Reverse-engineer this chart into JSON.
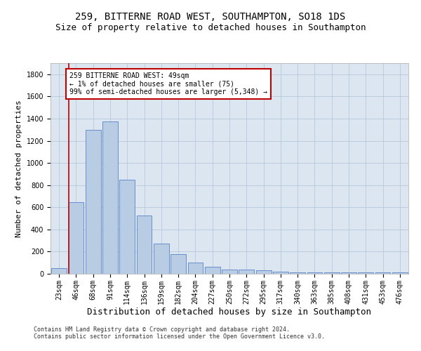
{
  "title1": "259, BITTERNE ROAD WEST, SOUTHAMPTON, SO18 1DS",
  "title2": "Size of property relative to detached houses in Southampton",
  "xlabel": "Distribution of detached houses by size in Southampton",
  "ylabel": "Number of detached properties",
  "categories": [
    "23sqm",
    "46sqm",
    "68sqm",
    "91sqm",
    "114sqm",
    "136sqm",
    "159sqm",
    "182sqm",
    "204sqm",
    "227sqm",
    "250sqm",
    "272sqm",
    "295sqm",
    "317sqm",
    "340sqm",
    "363sqm",
    "385sqm",
    "408sqm",
    "431sqm",
    "453sqm",
    "476sqm"
  ],
  "values": [
    50,
    645,
    1300,
    1375,
    850,
    525,
    275,
    175,
    100,
    65,
    40,
    35,
    30,
    20,
    15,
    12,
    10,
    10,
    10,
    10,
    12
  ],
  "bar_color": "#b8cce4",
  "bar_edge_color": "#4472c4",
  "ylim": [
    0,
    1900
  ],
  "yticks": [
    0,
    200,
    400,
    600,
    800,
    1000,
    1200,
    1400,
    1600,
    1800
  ],
  "vline_color": "#c00000",
  "annotation_text": "259 BITTERNE ROAD WEST: 49sqm\n← 1% of detached houses are smaller (75)\n99% of semi-detached houses are larger (5,348) →",
  "annotation_box_color": "#c00000",
  "footer1": "Contains HM Land Registry data © Crown copyright and database right 2024.",
  "footer2": "Contains public sector information licensed under the Open Government Licence v3.0.",
  "bg_color": "#ffffff",
  "plot_bg_color": "#dce6f1",
  "grid_color": "#b8c8dc",
  "title1_fontsize": 10,
  "title2_fontsize": 9,
  "xlabel_fontsize": 9,
  "ylabel_fontsize": 8,
  "tick_fontsize": 7,
  "footer_fontsize": 6
}
